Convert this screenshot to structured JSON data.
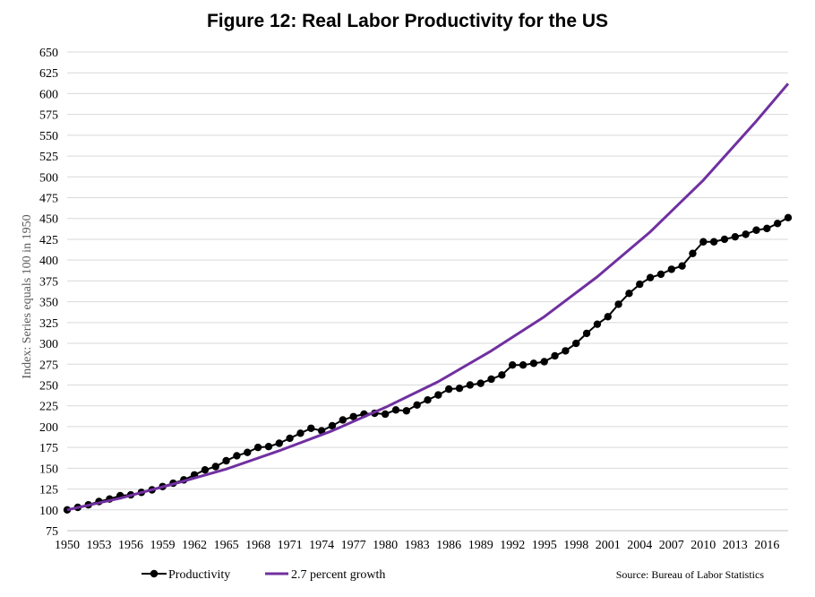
{
  "chart_data": {
    "type": "line",
    "title": "Figure 12:  Real Labor Productivity for the US",
    "ylabel": "Index:  Series equals  100 in 1950",
    "xlabel": "",
    "ylim": [
      75,
      650
    ],
    "yticks": [
      75,
      100,
      125,
      150,
      175,
      200,
      225,
      250,
      275,
      300,
      325,
      350,
      375,
      400,
      425,
      450,
      475,
      500,
      525,
      550,
      575,
      600,
      625,
      650
    ],
    "xlim": [
      1950,
      2018
    ],
    "xticks": [
      1950,
      1953,
      1956,
      1959,
      1962,
      1965,
      1968,
      1971,
      1974,
      1977,
      1980,
      1983,
      1986,
      1989,
      1992,
      1995,
      1998,
      2001,
      2004,
      2007,
      2010,
      2013,
      2016
    ],
    "grid": true,
    "legend_position": "bottom-left",
    "source": "Source:  Bureau of Labor Statistics",
    "series": [
      {
        "name": "Productivity",
        "color": "#000000",
        "marker": "circle",
        "x": [
          1950,
          1951,
          1952,
          1953,
          1954,
          1955,
          1956,
          1957,
          1958,
          1959,
          1960,
          1961,
          1962,
          1963,
          1964,
          1965,
          1966,
          1967,
          1968,
          1969,
          1970,
          1971,
          1972,
          1973,
          1974,
          1975,
          1976,
          1977,
          1978,
          1979,
          1980,
          1981,
          1982,
          1983,
          1984,
          1985,
          1986,
          1987,
          1988,
          1989,
          1990,
          1991,
          1992,
          1993,
          1994,
          1995,
          1996,
          1997,
          1998,
          1999,
          2000,
          2001,
          2002,
          2003,
          2004,
          2005,
          2006,
          2007,
          2008,
          2009,
          2010,
          2011,
          2012,
          2013,
          2014,
          2015,
          2016,
          2017,
          2018
        ],
        "values": [
          100,
          103,
          106,
          110,
          113,
          117,
          118,
          121,
          124,
          128,
          132,
          136,
          142,
          148,
          152,
          159,
          165,
          169,
          175,
          176,
          180,
          186,
          192,
          198,
          195,
          201,
          208,
          212,
          215,
          216,
          215,
          220,
          219,
          226,
          232,
          238,
          245,
          246,
          250,
          252,
          257,
          262,
          274,
          274,
          276,
          278,
          285,
          291,
          300,
          312,
          323,
          332,
          347,
          360,
          371,
          379,
          383,
          389,
          393,
          408,
          422,
          422,
          425,
          428,
          431,
          436,
          438,
          444,
          451
        ]
      },
      {
        "name": "2.7 percent growth",
        "color": "#7030a0",
        "marker": "none",
        "growth_rate_pct": 2.7,
        "x": [
          1950,
          1955,
          1960,
          1965,
          1970,
          1975,
          1980,
          1985,
          1990,
          1995,
          2000,
          2005,
          2010,
          2015,
          2018
        ],
        "values": [
          100,
          114,
          131,
          149,
          171,
          195,
          223,
          254,
          291,
          332,
          380,
          434,
          496,
          567,
          612
        ]
      }
    ]
  }
}
